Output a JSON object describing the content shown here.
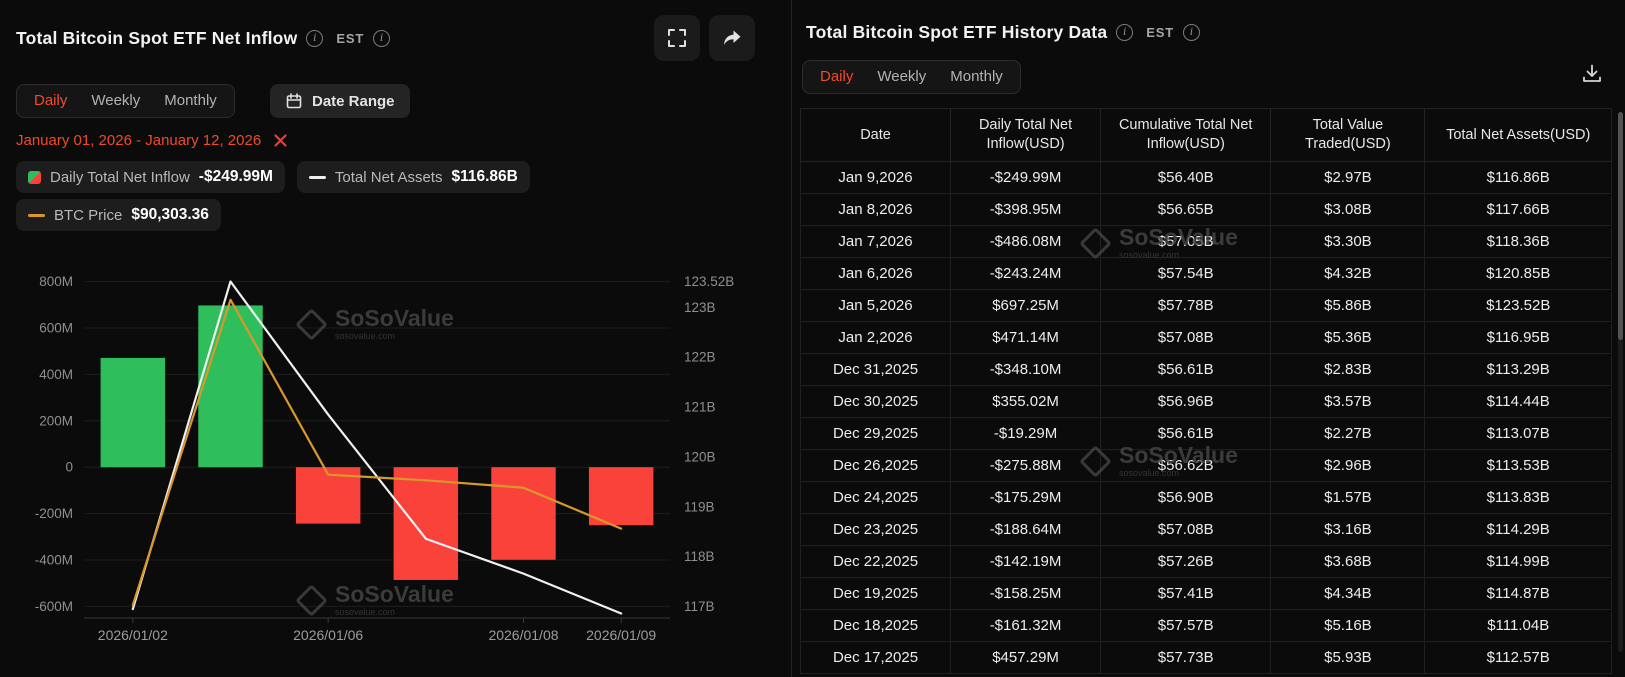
{
  "colors": {
    "accent": "#f04a2e",
    "bar_green": "#2fbe5c",
    "bar_red": "#f9423a",
    "line_net_assets": "#f0f0f0",
    "line_btc": "#d9982c",
    "table_red": "#f5433c",
    "table_green": "#27c277",
    "background": "#0b0b0b"
  },
  "left_panel": {
    "title": "Total Bitcoin Spot ETF Net Inflow",
    "est_label": "EST",
    "tabs": [
      {
        "label": "Daily"
      },
      {
        "label": "Weekly"
      },
      {
        "label": "Monthly"
      }
    ],
    "date_range_button": "Date Range",
    "date_range_value": "January 01, 2026 - January 12, 2026",
    "legend": {
      "inflow_label": "Daily Total Net Inflow",
      "inflow_value": "-$249.99M",
      "assets_label": "Total Net Assets",
      "assets_value": "$116.86B",
      "btc_label": "BTC Price",
      "btc_value": "$90,303.36"
    },
    "watermark": {
      "name": "SoSoValue",
      "domain": "sosovalue.com"
    }
  },
  "chart_data": {
    "type": "combo",
    "categories": [
      "2026/01/02",
      "2026/01/05",
      "2026/01/06",
      "2026/01/07",
      "2026/01/08",
      "2026/01/09"
    ],
    "series": [
      {
        "name": "Daily Total Net Inflow (USD M)",
        "type": "bar",
        "axis": "left",
        "values": [
          471.14,
          697.25,
          -243.24,
          -486.08,
          -398.95,
          -249.99
        ]
      },
      {
        "name": "Total Net Assets (USD B)",
        "type": "line",
        "axis": "right",
        "values": [
          116.95,
          123.52,
          120.85,
          118.36,
          117.66,
          116.86
        ]
      },
      {
        "name": "BTC Price (USD)",
        "type": "line",
        "axis": "btc",
        "values": [
          86200,
          102600,
          93200,
          92900,
          92500,
          90303.36
        ]
      }
    ],
    "left_axis": {
      "min": -650,
      "max": 850,
      "ticks": [
        {
          "v": 800,
          "label": "800M"
        },
        {
          "v": 600,
          "label": "600M"
        },
        {
          "v": 400,
          "label": "400M"
        },
        {
          "v": 200,
          "label": "200M"
        },
        {
          "v": 0,
          "label": "0"
        },
        {
          "v": -200,
          "label": "-200M"
        },
        {
          "v": -400,
          "label": "-400M"
        },
        {
          "v": -600,
          "label": "-600M"
        }
      ]
    },
    "right_axis": {
      "min": 116.77,
      "max": 123.75,
      "ticks": [
        {
          "v": 123.52,
          "label": "123.52B"
        },
        {
          "v": 123,
          "label": "123B"
        },
        {
          "v": 122,
          "label": "122B"
        },
        {
          "v": 121,
          "label": "121B"
        },
        {
          "v": 120,
          "label": "120B"
        },
        {
          "v": 119,
          "label": "119B"
        },
        {
          "v": 118,
          "label": "118B"
        },
        {
          "v": 117,
          "label": "117B"
        }
      ]
    },
    "btc_axis": {
      "min": 85500,
      "max": 104200
    },
    "x_ticks": [
      {
        "index": 0,
        "label": "2026/01/02"
      },
      {
        "index": 2,
        "label": "2026/01/06"
      },
      {
        "index": 4,
        "label": "2026/01/08"
      },
      {
        "index": 5,
        "label": "2026/01/09"
      }
    ],
    "grid": true,
    "legend_position": "top"
  },
  "right_panel": {
    "title": "Total Bitcoin Spot ETF History Data",
    "est_label": "EST",
    "tabs": [
      {
        "label": "Daily"
      },
      {
        "label": "Weekly"
      },
      {
        "label": "Monthly"
      }
    ],
    "watermark": {
      "name": "SoSoValue",
      "domain": "sosovalue.com"
    },
    "table": {
      "columns": [
        "Date",
        "Daily Total Net Inflow(USD)",
        "Cumulative Total Net Inflow(USD)",
        "Total Value Traded(USD)",
        "Total Net Assets(USD)"
      ],
      "rows": [
        {
          "date": "Jan 9,2026",
          "inflow": "-$249.99M",
          "cumulative": "$56.40B",
          "traded": "$2.97B",
          "assets": "$116.86B"
        },
        {
          "date": "Jan 8,2026",
          "inflow": "-$398.95M",
          "cumulative": "$56.65B",
          "traded": "$3.08B",
          "assets": "$117.66B"
        },
        {
          "date": "Jan 7,2026",
          "inflow": "-$486.08M",
          "cumulative": "$57.05B",
          "traded": "$3.30B",
          "assets": "$118.36B"
        },
        {
          "date": "Jan 6,2026",
          "inflow": "-$243.24M",
          "cumulative": "$57.54B",
          "traded": "$4.32B",
          "assets": "$120.85B"
        },
        {
          "date": "Jan 5,2026",
          "inflow": "$697.25M",
          "cumulative": "$57.78B",
          "traded": "$5.86B",
          "assets": "$123.52B"
        },
        {
          "date": "Jan 2,2026",
          "inflow": "$471.14M",
          "cumulative": "$57.08B",
          "traded": "$5.36B",
          "assets": "$116.95B"
        },
        {
          "date": "Dec 31,2025",
          "inflow": "-$348.10M",
          "cumulative": "$56.61B",
          "traded": "$2.83B",
          "assets": "$113.29B"
        },
        {
          "date": "Dec 30,2025",
          "inflow": "$355.02M",
          "cumulative": "$56.96B",
          "traded": "$3.57B",
          "assets": "$114.44B"
        },
        {
          "date": "Dec 29,2025",
          "inflow": "-$19.29M",
          "cumulative": "$56.61B",
          "traded": "$2.27B",
          "assets": "$113.07B"
        },
        {
          "date": "Dec 26,2025",
          "inflow": "-$275.88M",
          "cumulative": "$56.62B",
          "traded": "$2.96B",
          "assets": "$113.53B"
        },
        {
          "date": "Dec 24,2025",
          "inflow": "-$175.29M",
          "cumulative": "$56.90B",
          "traded": "$1.57B",
          "assets": "$113.83B"
        },
        {
          "date": "Dec 23,2025",
          "inflow": "-$188.64M",
          "cumulative": "$57.08B",
          "traded": "$3.16B",
          "assets": "$114.29B"
        },
        {
          "date": "Dec 22,2025",
          "inflow": "-$142.19M",
          "cumulative": "$57.26B",
          "traded": "$3.68B",
          "assets": "$114.99B"
        },
        {
          "date": "Dec 19,2025",
          "inflow": "-$158.25M",
          "cumulative": "$57.41B",
          "traded": "$4.34B",
          "assets": "$114.87B"
        },
        {
          "date": "Dec 18,2025",
          "inflow": "-$161.32M",
          "cumulative": "$57.57B",
          "traded": "$5.16B",
          "assets": "$111.04B"
        },
        {
          "date": "Dec 17,2025",
          "inflow": "$457.29M",
          "cumulative": "$57.73B",
          "traded": "$5.93B",
          "assets": "$112.57B"
        }
      ]
    }
  }
}
